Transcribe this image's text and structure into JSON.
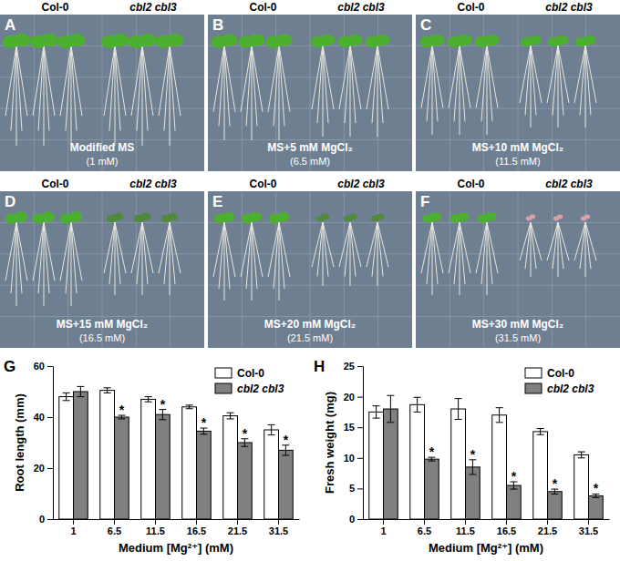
{
  "photo_panels": [
    {
      "letter": "A",
      "left": "Col-0",
      "right": "cbl2 cbl3",
      "condition": "Modified MS",
      "concentration": "(1 mM)"
    },
    {
      "letter": "B",
      "left": "Col-0",
      "right": "cbl2 cbl3",
      "condition": "MS+5 mM MgCl₂",
      "concentration": "(6.5 mM)"
    },
    {
      "letter": "C",
      "left": "Col-0",
      "right": "cbl2 cbl3",
      "condition": "MS+10 mM MgCl₂",
      "concentration": "(11.5 mM)"
    },
    {
      "letter": "D",
      "left": "Col-0",
      "right": "cbl2 cbl3",
      "condition": "MS+15 mM MgCl₂",
      "concentration": "(16.5 mM)"
    },
    {
      "letter": "E",
      "left": "Col-0",
      "right": "cbl2 cbl3",
      "condition": "MS+20 mM MgCl₂",
      "concentration": "(21.5 mM)"
    },
    {
      "letter": "F",
      "left": "Col-0",
      "right": "cbl2 cbl3",
      "condition": "MS+30 mM MgCl₂",
      "concentration": "(31.5 mM)"
    }
  ],
  "chart_data": [
    {
      "type": "bar",
      "panel_label": "G",
      "x_label": "Medium [Mg²⁺] (mM)",
      "y_label": "Root length (mm)",
      "categories": [
        "1",
        "6.5",
        "11.5",
        "16.5",
        "21.5",
        "31.5"
      ],
      "series": [
        {
          "name": "Col-0",
          "color": "#ffffff",
          "values": [
            48,
            50.5,
            47,
            44,
            40.5,
            35
          ],
          "errors": [
            1.5,
            1,
            1,
            0.7,
            1.2,
            2
          ],
          "significance": [
            null,
            null,
            null,
            null,
            null,
            null
          ]
        },
        {
          "name": "cbl2 cbl3",
          "color": "#808080",
          "values": [
            50,
            40,
            41,
            34.5,
            30,
            27
          ],
          "errors": [
            2,
            0.7,
            2,
            1.2,
            1.5,
            2
          ],
          "significance": [
            null,
            "*",
            "*",
            "*",
            "*",
            "*"
          ]
        }
      ],
      "ylim": [
        0,
        60
      ],
      "yticks": [
        0,
        20,
        40,
        60
      ],
      "legend": "top-right"
    },
    {
      "type": "bar",
      "panel_label": "H",
      "x_label": "Medium [Mg²⁺] (mM)",
      "y_label": "Fresh weight (mg)",
      "categories": [
        "1",
        "6.5",
        "11.5",
        "16.5",
        "21.5",
        "31.5"
      ],
      "series": [
        {
          "name": "Col-0",
          "color": "#ffffff",
          "values": [
            17.5,
            18.7,
            18,
            17,
            14.3,
            10.5
          ],
          "errors": [
            1,
            1.2,
            1.7,
            1.2,
            0.5,
            0.5
          ],
          "significance": [
            null,
            null,
            null,
            null,
            null,
            null
          ]
        },
        {
          "name": "cbl2 cbl3",
          "color": "#808080",
          "values": [
            18,
            9.8,
            8.5,
            5.5,
            4.5,
            3.8
          ],
          "errors": [
            2.2,
            0.3,
            1.2,
            0.6,
            0.4,
            0.3
          ],
          "significance": [
            null,
            "*",
            "*",
            "*",
            "*",
            "*"
          ]
        }
      ],
      "ylim": [
        0,
        25
      ],
      "yticks": [
        0,
        5,
        10,
        15,
        20,
        25
      ],
      "legend": "top-right"
    }
  ]
}
